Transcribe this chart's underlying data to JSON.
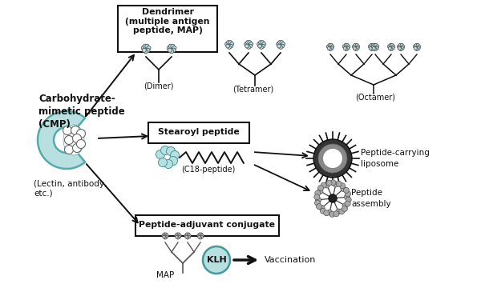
{
  "bg_color": "#ffffff",
  "fig_width": 6.0,
  "fig_height": 3.7,
  "dpi": 100,
  "teal_color": "#88cccc",
  "teal_light": "#aadddd",
  "teal_fill": "#b8e0e0",
  "dark_color": "#111111",
  "box_texts": {
    "dendrimer": "Dendrimer\n(multiple antigen\npeptide, MAP)",
    "stearoyl": "Stearoyl peptide",
    "conjugate": "Peptide-adjuvant conjugate"
  },
  "labels": {
    "cmp_title": "Carbohydrate-\nmimetic peptide\n(CMP)",
    "lectin": "(Lectin, antibody,\netc.)",
    "dimer": "(Dimer)",
    "tetramer": "(Tetramer)",
    "octamer": "(Octamer)",
    "c18": "(C18-peptide)",
    "liposome": "Peptide-carrying\nliposome",
    "assembly": "Peptide\nassembly",
    "map_label": "MAP",
    "klh_label": "KLH",
    "vaccination": "Vaccination"
  }
}
